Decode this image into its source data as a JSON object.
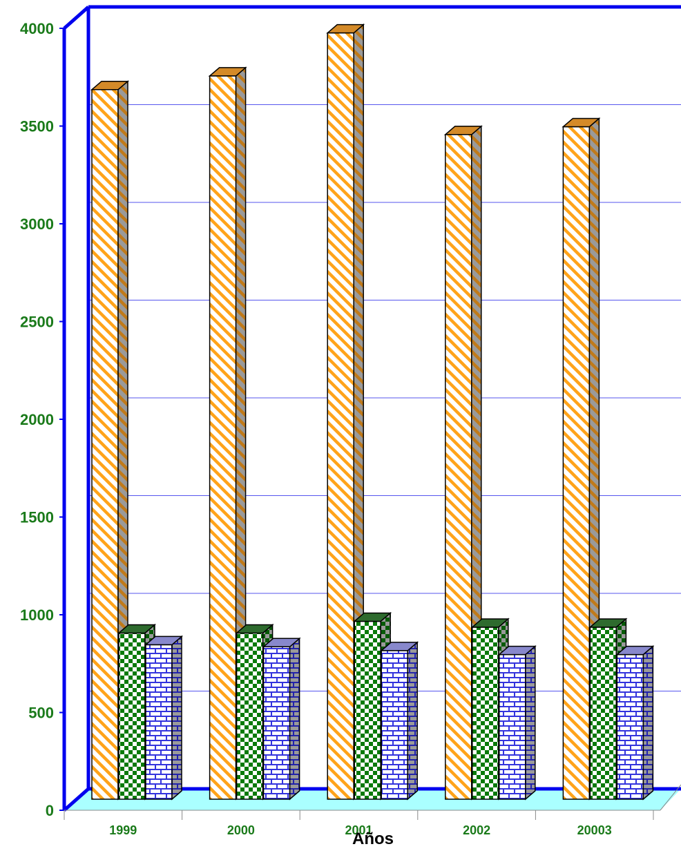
{
  "chart_data": {
    "type": "bar",
    "categories": [
      "1999",
      "2000",
      "2001",
      "2002",
      "20003"
    ],
    "series": [
      {
        "values": [
          3630,
          3700,
          3920,
          3400,
          3440
        ]
      },
      {
        "values": [
          850,
          850,
          910,
          880,
          880
        ]
      },
      {
        "values": [
          790,
          780,
          760,
          740,
          740
        ]
      }
    ],
    "xlabel": "Años",
    "ylabel": "",
    "ylim": [
      0,
      4000
    ],
    "y_ticks": [
      "0",
      "500",
      "1000",
      "1500",
      "2000",
      "2500",
      "3000",
      "3500",
      "4000"
    ],
    "grid": true,
    "style": "3d-clustered-bar",
    "colors": {
      "axis": "#0000ee",
      "gridline": "#5555ee",
      "tick_label": "#1a7a1a",
      "floor": "#aaffff",
      "series_1": "#ffa31a",
      "series_2": "#0a7a0a",
      "series_3": "#3333dd"
    }
  }
}
